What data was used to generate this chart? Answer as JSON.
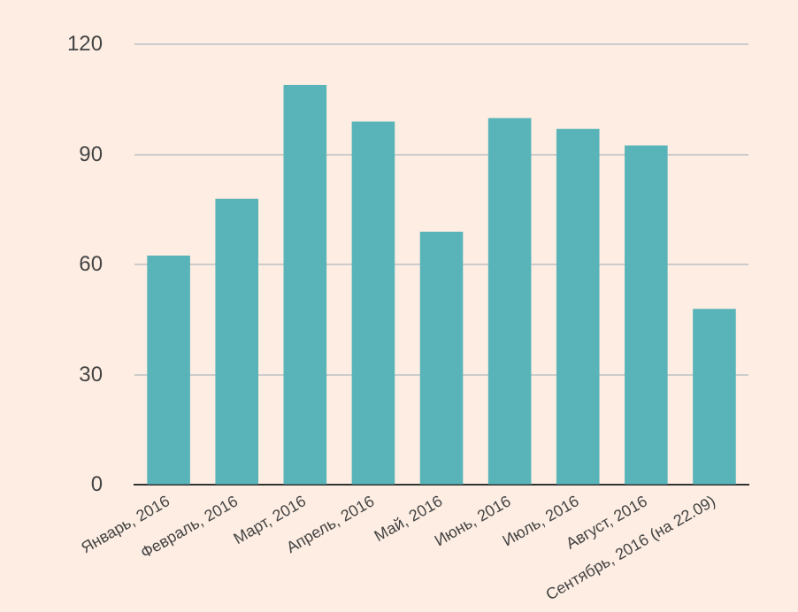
{
  "chart_data": {
    "type": "bar",
    "categories": [
      "Январь, 2016",
      "Февраль, 2016",
      "Март, 2016",
      "Апрель, 2016",
      "Май, 2016",
      "Июнь, 2016",
      "Июль, 2016",
      "Август, 2016",
      "Сентябрь, 2016 (на 22.09)"
    ],
    "values": [
      62.5,
      78,
      109,
      99,
      69,
      100,
      97,
      92.5,
      48
    ],
    "color": "#58b4b8",
    "ylim": [
      0,
      120
    ],
    "yticks": [
      0,
      30,
      60,
      90,
      120
    ],
    "grid": "y",
    "legend": false
  }
}
